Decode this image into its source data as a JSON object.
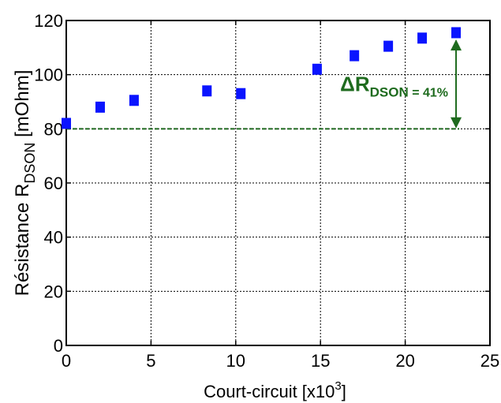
{
  "chart_data": {
    "type": "scatter",
    "xlabel": {
      "main": "Court-circuit [x10",
      "sup": "3",
      "end": "]"
    },
    "ylabel": {
      "main": "Résistance R",
      "sub": "DSON",
      "end": " [mOhm]"
    },
    "xlim": [
      0,
      25
    ],
    "ylim": [
      0,
      120
    ],
    "xticks": [
      0,
      5,
      10,
      15,
      20,
      25
    ],
    "yticks": [
      0,
      20,
      40,
      60,
      80,
      100,
      120
    ],
    "grid": true,
    "marker_color": "#0a14ff",
    "series": [
      {
        "x": [
          0,
          2,
          4,
          8.3,
          10.3,
          14.8,
          17,
          19,
          21,
          23
        ],
        "y": [
          82,
          88,
          90.5,
          94,
          93,
          102,
          107,
          110.5,
          113.5,
          115.5
        ]
      }
    ],
    "reference_line": {
      "y": 80,
      "color": "#1e6b1e",
      "style": "dashed"
    },
    "annotation": {
      "delta": "ΔR",
      "sub": "DSON",
      "value": " = 41%",
      "arrow_x": 23,
      "from_y": 80,
      "to_y": 115.5,
      "color": "#1e6b1e"
    }
  }
}
